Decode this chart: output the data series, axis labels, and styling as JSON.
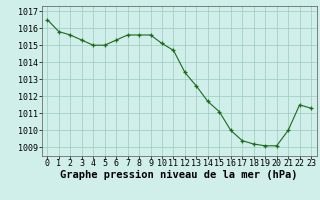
{
  "x": [
    0,
    1,
    2,
    3,
    4,
    5,
    6,
    7,
    8,
    9,
    10,
    11,
    12,
    13,
    14,
    15,
    16,
    17,
    18,
    19,
    20,
    21,
    22,
    23
  ],
  "y": [
    1016.5,
    1015.8,
    1015.6,
    1015.3,
    1015.0,
    1015.0,
    1015.3,
    1015.6,
    1015.6,
    1015.6,
    1015.1,
    1014.7,
    1013.4,
    1012.6,
    1011.7,
    1011.1,
    1010.0,
    1009.4,
    1009.2,
    1009.1,
    1009.1,
    1010.0,
    1011.5,
    1011.3
  ],
  "xlim": [
    -0.5,
    23.5
  ],
  "ylim": [
    1008.5,
    1017.3
  ],
  "yticks": [
    1009,
    1010,
    1011,
    1012,
    1013,
    1014,
    1015,
    1016,
    1017
  ],
  "xticks": [
    0,
    1,
    2,
    3,
    4,
    5,
    6,
    7,
    8,
    9,
    10,
    11,
    12,
    13,
    14,
    15,
    16,
    17,
    18,
    19,
    20,
    21,
    22,
    23
  ],
  "line_color": "#1a6b1a",
  "marker_color": "#1a6b1a",
  "bg_color": "#d0eeea",
  "grid_color": "#99ccbb",
  "xlabel": "Graphe pression niveau de la mer (hPa)",
  "xlabel_fontsize": 7.5,
  "tick_fontsize": 6,
  "marker": "+",
  "marker_size": 3.5,
  "linewidth": 0.8
}
